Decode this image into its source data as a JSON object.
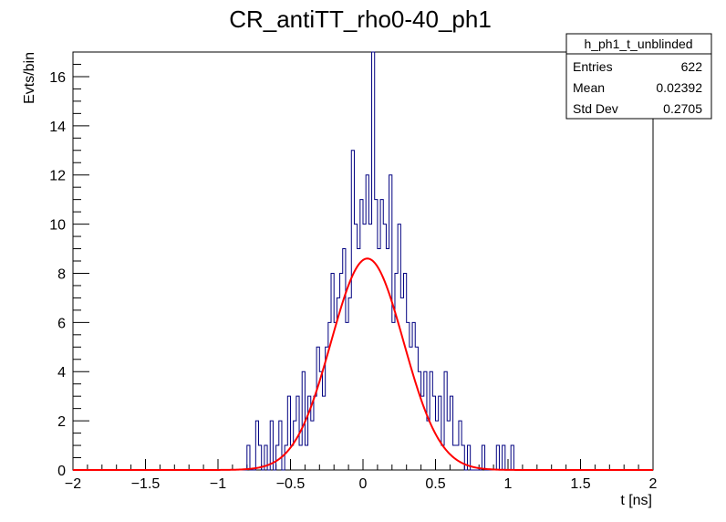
{
  "chart_data": {
    "type": "histogram",
    "title": "CR_antiTT_rho0-40_ph1",
    "xlabel": "t [ns]",
    "ylabel": "Evts/bin",
    "xlim": [
      -2,
      2
    ],
    "ylim": [
      0,
      17
    ],
    "xticks": [
      "−2",
      "−1.5",
      "−1",
      "−0.5",
      "0",
      "0.5",
      "1",
      "1.5",
      "2"
    ],
    "xtick_values": [
      -2,
      -1.5,
      -1,
      -0.5,
      0,
      0.5,
      1,
      1.5,
      2
    ],
    "yticks": [
      "0",
      "2",
      "4",
      "6",
      "8",
      "10",
      "12",
      "14",
      "16"
    ],
    "ytick_values": [
      0,
      2,
      4,
      6,
      8,
      10,
      12,
      14,
      16
    ],
    "bin_width": 0.02,
    "nbins": 200,
    "hist_color": "#000080",
    "fit_color": "#ff0000",
    "histogram": {
      "x_start": -0.8,
      "counts": [
        1,
        0,
        0,
        2,
        1,
        0,
        1,
        0,
        2,
        0,
        1,
        2,
        0,
        1,
        3,
        1,
        2,
        3,
        1,
        4,
        1,
        3,
        2,
        3,
        5,
        4,
        3,
        5,
        6,
        8,
        6,
        7,
        8,
        9,
        6,
        7,
        13,
        10,
        9,
        11,
        10,
        12,
        10,
        17,
        11,
        9,
        11,
        10,
        9,
        12,
        6,
        8,
        10,
        7,
        8,
        6,
        5,
        6,
        5,
        4,
        3,
        4,
        2,
        4,
        3,
        2,
        3,
        1,
        4,
        2,
        3,
        1,
        1,
        2,
        1,
        0,
        1,
        0,
        0,
        0,
        0,
        1,
        0,
        0,
        0,
        0,
        1,
        0,
        1,
        0,
        0,
        1
      ]
    },
    "fit": {
      "function": "gaussian",
      "constant": 8.6,
      "mean": 0.03,
      "sigma": 0.25
    },
    "stats_box": {
      "name": "h_ph1_t_unblinded",
      "rows": [
        {
          "label": "Entries",
          "value": "622"
        },
        {
          "label": "Mean",
          "value": "0.02392"
        },
        {
          "label": "Std Dev",
          "value": "0.2705"
        }
      ]
    }
  }
}
